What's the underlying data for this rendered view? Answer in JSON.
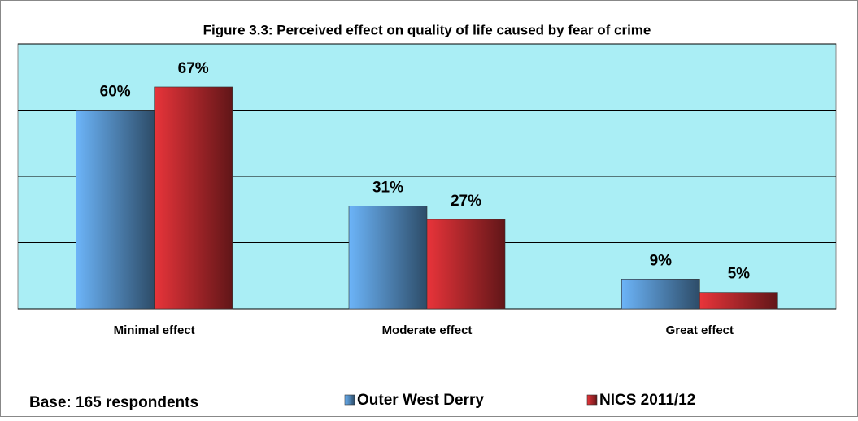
{
  "chart_data": {
    "type": "bar",
    "title": "Figure 3.3: Perceived effect on quality of life caused by fear of crime",
    "categories": [
      "Minimal effect",
      "Moderate effect",
      "Great effect"
    ],
    "series": [
      {
        "name": "Outer West Derry",
        "color": "#6cb4f8",
        "values": [
          60,
          31,
          9
        ],
        "value_labels": [
          "60%",
          "31%",
          "9%"
        ]
      },
      {
        "name": "NICS 2011/12",
        "color": "#e8343a",
        "values": [
          67,
          27,
          5
        ],
        "value_labels": [
          "67%",
          "27%",
          "5%"
        ]
      }
    ],
    "ylim": [
      0,
      80
    ],
    "yticks": [
      0,
      20,
      40,
      60,
      80
    ],
    "grid": true,
    "plot_background": "#aaeef5",
    "annotation": "Base: 165 respondents"
  }
}
